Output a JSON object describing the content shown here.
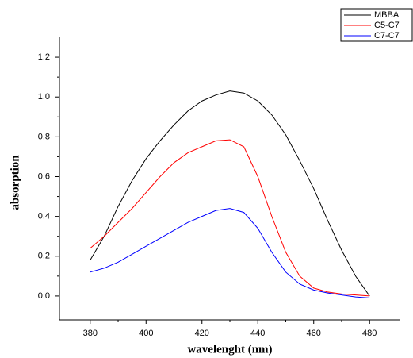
{
  "chart_data": {
    "type": "line",
    "x_label": "wavelenght (nm)",
    "y_label": "absorption",
    "x": [
      380,
      385,
      390,
      395,
      400,
      405,
      410,
      415,
      420,
      425,
      430,
      435,
      440,
      445,
      450,
      455,
      460,
      465,
      470,
      475,
      480
    ],
    "series": [
      {
        "name": "MBBA",
        "color": "#000000",
        "values": [
          0.18,
          0.3,
          0.45,
          0.58,
          0.69,
          0.78,
          0.86,
          0.93,
          0.98,
          1.01,
          1.03,
          1.02,
          0.98,
          0.91,
          0.81,
          0.68,
          0.54,
          0.38,
          0.23,
          0.1,
          0.0
        ]
      },
      {
        "name": "C5-C7",
        "color": "#ff0000",
        "values": [
          0.24,
          0.3,
          0.37,
          0.44,
          0.52,
          0.6,
          0.67,
          0.72,
          0.75,
          0.78,
          0.785,
          0.75,
          0.6,
          0.4,
          0.22,
          0.1,
          0.04,
          0.02,
          0.01,
          0.005,
          0.0
        ]
      },
      {
        "name": "C7-C7",
        "color": "#0000ff",
        "values": [
          0.12,
          0.14,
          0.17,
          0.21,
          0.25,
          0.29,
          0.33,
          0.37,
          0.4,
          0.43,
          0.44,
          0.42,
          0.34,
          0.22,
          0.12,
          0.06,
          0.03,
          0.015,
          0.005,
          -0.005,
          -0.01
        ]
      }
    ],
    "xlim": [
      369,
      491
    ],
    "xticks": [
      380,
      400,
      420,
      440,
      460,
      480
    ],
    "ylim": [
      -0.12,
      1.3
    ],
    "yticks": [
      {
        "value": 0,
        "label": "0.0"
      },
      0.2,
      0.4,
      0.6,
      0.8,
      {
        "value": 1,
        "label": "1.0"
      },
      1.2
    ],
    "legend": "top-right"
  }
}
